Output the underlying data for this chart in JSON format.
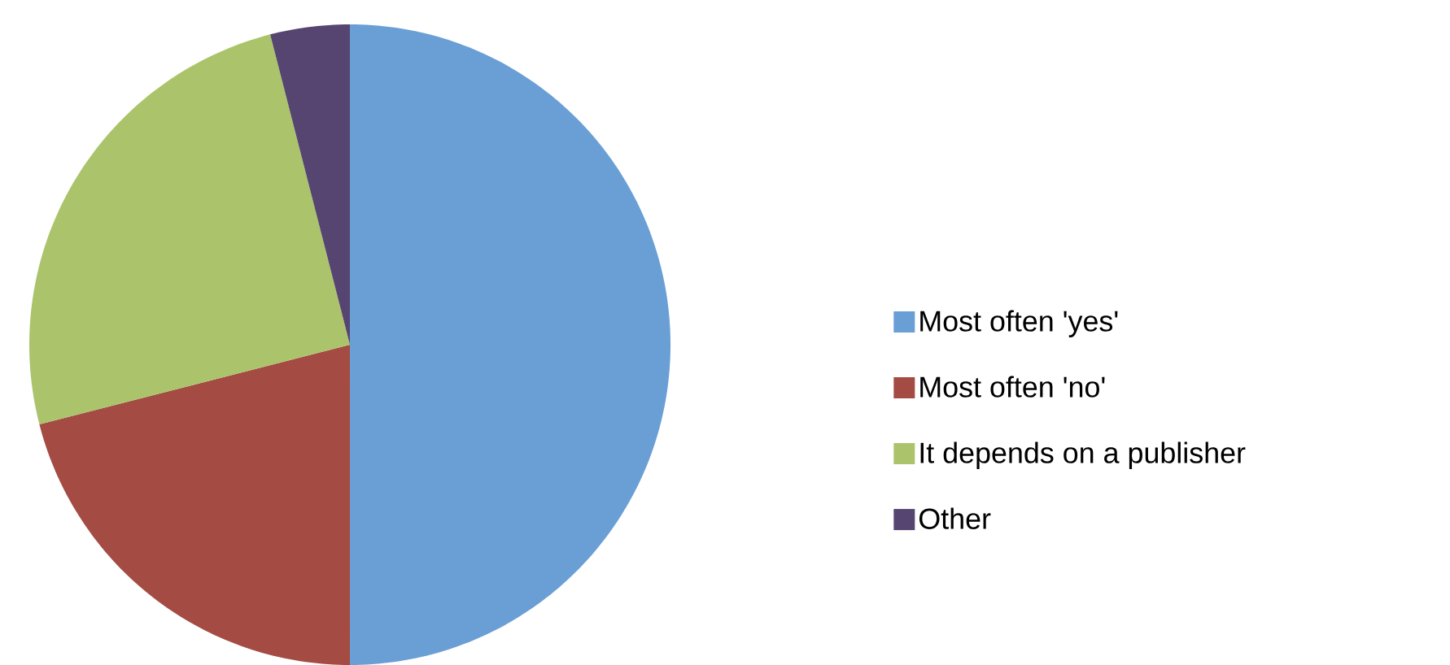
{
  "chart_data": {
    "type": "pie",
    "categories": [
      "Most often 'yes'",
      "Most often 'no'",
      "It depends on a publisher",
      "Other"
    ],
    "values": [
      50,
      21,
      25,
      4
    ],
    "colors": [
      "#6a9fd5",
      "#a44b43",
      "#abc46b",
      "#564570"
    ],
    "legend": "right"
  }
}
